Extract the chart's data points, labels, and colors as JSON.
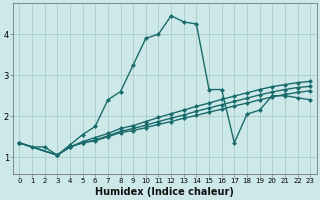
{
  "xlabel": "Humidex (Indice chaleur)",
  "bg_color": "#cce8e8",
  "grid_color": "#b0d0d0",
  "line_color": "#1a6b6b",
  "xlim": [
    -0.5,
    23.5
  ],
  "ylim": [
    0.6,
    4.75
  ],
  "xticks": [
    0,
    1,
    2,
    3,
    4,
    5,
    6,
    7,
    8,
    9,
    10,
    11,
    12,
    13,
    14,
    15,
    16,
    17,
    18,
    19,
    20,
    21,
    22,
    23
  ],
  "yticks": [
    1,
    2,
    3,
    4
  ],
  "humidex_x": [
    0,
    1,
    2,
    3,
    4,
    5,
    6,
    7,
    8,
    9,
    10,
    11,
    12,
    13,
    14,
    15,
    16,
    17,
    18,
    19,
    20,
    21,
    22,
    23
  ],
  "humidex_y": [
    1.35,
    1.25,
    1.25,
    1.05,
    1.3,
    1.55,
    1.75,
    2.4,
    2.6,
    3.25,
    3.9,
    4.0,
    4.45,
    4.3,
    4.25,
    2.65,
    2.65,
    1.35,
    2.05,
    2.15,
    2.5,
    2.5,
    2.45,
    2.4
  ],
  "line1_x": [
    0,
    3,
    4,
    5,
    6,
    7,
    8,
    9,
    10,
    11,
    12,
    13,
    14,
    15,
    16,
    17,
    18,
    19,
    20,
    21,
    22,
    23
  ],
  "line1_y": [
    1.35,
    1.05,
    1.25,
    1.35,
    1.4,
    1.5,
    1.6,
    1.65,
    1.72,
    1.8,
    1.87,
    1.95,
    2.02,
    2.1,
    2.17,
    2.25,
    2.32,
    2.4,
    2.47,
    2.53,
    2.58,
    2.62
  ],
  "line2_x": [
    0,
    3,
    4,
    5,
    6,
    7,
    8,
    9,
    10,
    11,
    12,
    13,
    14,
    15,
    16,
    17,
    18,
    19,
    20,
    21,
    22,
    23
  ],
  "line2_y": [
    1.35,
    1.05,
    1.25,
    1.35,
    1.42,
    1.52,
    1.63,
    1.7,
    1.78,
    1.87,
    1.95,
    2.03,
    2.12,
    2.2,
    2.28,
    2.36,
    2.44,
    2.52,
    2.59,
    2.65,
    2.7,
    2.73
  ],
  "line3_x": [
    0,
    3,
    4,
    5,
    6,
    7,
    8,
    9,
    10,
    11,
    12,
    13,
    14,
    15,
    16,
    17,
    18,
    19,
    20,
    21,
    22,
    23
  ],
  "line3_y": [
    1.35,
    1.05,
    1.25,
    1.38,
    1.48,
    1.58,
    1.7,
    1.77,
    1.87,
    1.97,
    2.06,
    2.15,
    2.24,
    2.32,
    2.41,
    2.49,
    2.57,
    2.65,
    2.72,
    2.77,
    2.82,
    2.85
  ],
  "markersize": 2.5,
  "linewidth": 1.0,
  "fontsize_tick": 5,
  "fontsize_xlabel": 7
}
